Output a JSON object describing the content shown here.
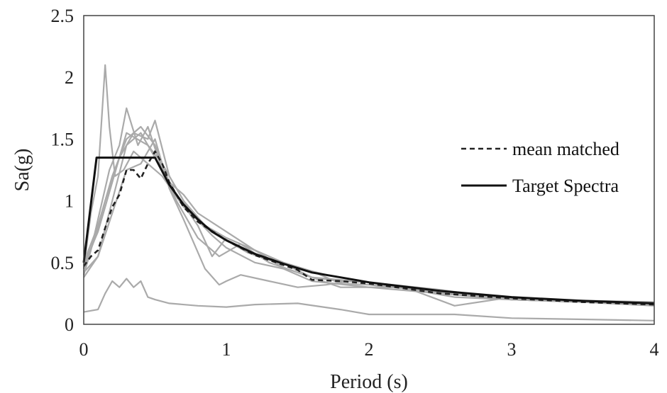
{
  "chart_data": {
    "type": "line",
    "xlabel": "Period (s)",
    "ylabel": "Sa(g)",
    "xlim": [
      0,
      4
    ],
    "ylim": [
      0,
      2.5
    ],
    "xticks": [
      0,
      1,
      2,
      3,
      4
    ],
    "xtick_labels": [
      "0",
      "1",
      "2",
      "3",
      "4"
    ],
    "yticks": [
      0,
      0.5,
      1,
      1.5,
      2,
      2.5
    ],
    "ytick_labels": [
      "0",
      "0.5",
      "1",
      "1.5",
      "2",
      "2.5"
    ],
    "grid": false,
    "legend_position": "right",
    "colors": {
      "record": "#aaaaaa",
      "mean": "#222222",
      "target": "#111111"
    },
    "legend": [
      {
        "label": "mean matched",
        "style": "dashed"
      },
      {
        "label": "Target Spectra",
        "style": "solid"
      }
    ],
    "series": [
      {
        "name": "Target Spectra",
        "style": "solid",
        "x": [
          0,
          0.09,
          0.5,
          0.6,
          0.7,
          0.8,
          0.9,
          1.0,
          1.2,
          1.4,
          1.6,
          1.8,
          2.0,
          2.5,
          3.0,
          3.5,
          4.0
        ],
        "y": [
          0.5,
          1.35,
          1.35,
          1.13,
          0.97,
          0.85,
          0.75,
          0.68,
          0.57,
          0.49,
          0.42,
          0.38,
          0.34,
          0.27,
          0.22,
          0.19,
          0.17
        ]
      },
      {
        "name": "mean matched",
        "style": "dashed",
        "x": [
          0,
          0.05,
          0.1,
          0.15,
          0.2,
          0.25,
          0.3,
          0.35,
          0.4,
          0.45,
          0.5,
          0.55,
          0.6,
          0.7,
          0.8,
          1.0,
          1.2,
          1.4,
          1.5,
          1.6,
          1.8,
          2.0,
          2.5,
          3.0,
          3.5,
          4.0
        ],
        "y": [
          0.47,
          0.55,
          0.6,
          0.78,
          0.95,
          1.05,
          1.25,
          1.25,
          1.18,
          1.3,
          1.4,
          1.3,
          1.15,
          0.95,
          0.83,
          0.68,
          0.56,
          0.48,
          0.44,
          0.36,
          0.35,
          0.33,
          0.25,
          0.21,
          0.18,
          0.16
        ]
      },
      {
        "style": "record",
        "x": [
          0,
          0.05,
          0.1,
          0.15,
          0.18,
          0.22,
          0.28,
          0.35,
          0.45,
          0.55,
          0.7,
          0.85,
          1.0,
          1.3,
          1.6,
          2.0,
          2.5,
          3.0,
          3.5,
          4.0
        ],
        "y": [
          0.45,
          0.9,
          1.2,
          2.1,
          1.6,
          1.2,
          1.25,
          1.4,
          1.3,
          1.2,
          0.95,
          0.8,
          0.7,
          0.55,
          0.38,
          0.34,
          0.28,
          0.2,
          0.18,
          0.17
        ]
      },
      {
        "style": "record",
        "x": [
          0,
          0.05,
          0.1,
          0.18,
          0.25,
          0.3,
          0.38,
          0.45,
          0.55,
          0.65,
          0.8,
          0.95,
          1.1,
          1.3,
          1.5,
          1.8,
          2.2,
          2.7,
          3.2,
          4.0
        ],
        "y": [
          0.4,
          0.6,
          0.85,
          1.25,
          1.45,
          1.75,
          1.45,
          1.6,
          1.25,
          1.0,
          0.7,
          0.55,
          0.65,
          0.5,
          0.42,
          0.3,
          0.3,
          0.25,
          0.2,
          0.18
        ]
      },
      {
        "style": "record",
        "x": [
          0,
          0.08,
          0.15,
          0.25,
          0.35,
          0.45,
          0.5,
          0.6,
          0.75,
          0.9,
          1.0,
          1.2,
          1.4,
          1.6,
          2.0,
          2.5,
          3.0,
          3.5,
          4.0
        ],
        "y": [
          0.45,
          0.7,
          1.0,
          1.35,
          1.55,
          1.5,
          1.65,
          1.2,
          0.9,
          0.72,
          0.62,
          0.5,
          0.45,
          0.35,
          0.3,
          0.25,
          0.2,
          0.18,
          0.17
        ]
      },
      {
        "style": "record",
        "x": [
          0,
          0.1,
          0.2,
          0.3,
          0.4,
          0.5,
          0.6,
          0.7,
          0.85,
          0.95,
          1.0,
          1.1,
          1.3,
          1.5,
          1.7,
          1.9,
          2.2,
          2.6,
          3.0,
          3.5,
          4.0
        ],
        "y": [
          0.42,
          0.55,
          0.9,
          1.25,
          1.3,
          1.5,
          1.1,
          0.85,
          0.45,
          0.32,
          0.35,
          0.4,
          0.35,
          0.3,
          0.32,
          0.36,
          0.3,
          0.22,
          0.2,
          0.18,
          0.15
        ]
      },
      {
        "style": "record",
        "x": [
          0,
          0.1,
          0.2,
          0.3,
          0.4,
          0.5,
          0.6,
          0.7,
          0.8,
          1.0,
          1.2,
          1.4,
          1.6,
          1.8,
          2.0,
          2.3,
          2.6,
          3.0,
          3.5,
          4.0
        ],
        "y": [
          0.5,
          0.8,
          1.2,
          1.5,
          1.6,
          1.45,
          1.15,
          1.05,
          0.9,
          0.75,
          0.6,
          0.46,
          0.38,
          0.35,
          0.34,
          0.28,
          0.15,
          0.22,
          0.18,
          0.16
        ]
      },
      {
        "style": "record",
        "x": [
          0,
          0.1,
          0.2,
          0.3,
          0.4,
          0.5,
          0.65,
          0.8,
          0.9,
          1.0,
          1.2,
          1.4,
          1.6,
          1.8,
          2.0,
          2.5,
          3.0,
          3.5,
          4.0
        ],
        "y": [
          0.38,
          0.55,
          1.0,
          1.45,
          1.55,
          1.35,
          1.05,
          0.8,
          0.55,
          0.7,
          0.6,
          0.5,
          0.43,
          0.33,
          0.32,
          0.26,
          0.2,
          0.18,
          0.16
        ]
      },
      {
        "style": "record",
        "x": [
          0,
          0.1,
          0.2,
          0.3,
          0.45,
          0.55,
          0.7,
          0.85,
          1.0,
          1.15,
          1.3,
          1.5,
          1.7,
          2.0,
          2.5,
          3.0,
          3.5,
          4.0
        ],
        "y": [
          0.48,
          0.75,
          1.15,
          1.55,
          1.45,
          1.3,
          1.0,
          0.8,
          0.68,
          0.58,
          0.52,
          0.46,
          0.4,
          0.34,
          0.27,
          0.21,
          0.19,
          0.17
        ]
      },
      {
        "style": "record",
        "x": [
          0,
          0.1,
          0.15,
          0.2,
          0.25,
          0.3,
          0.35,
          0.4,
          0.45,
          0.5,
          0.6,
          0.8,
          1.0,
          1.2,
          1.5,
          1.8,
          2.0,
          2.6,
          3.0,
          3.5,
          4.0
        ],
        "y": [
          0.1,
          0.12,
          0.25,
          0.35,
          0.3,
          0.37,
          0.3,
          0.35,
          0.22,
          0.2,
          0.17,
          0.15,
          0.14,
          0.16,
          0.17,
          0.12,
          0.08,
          0.08,
          0.05,
          0.04,
          0.03
        ]
      }
    ]
  }
}
